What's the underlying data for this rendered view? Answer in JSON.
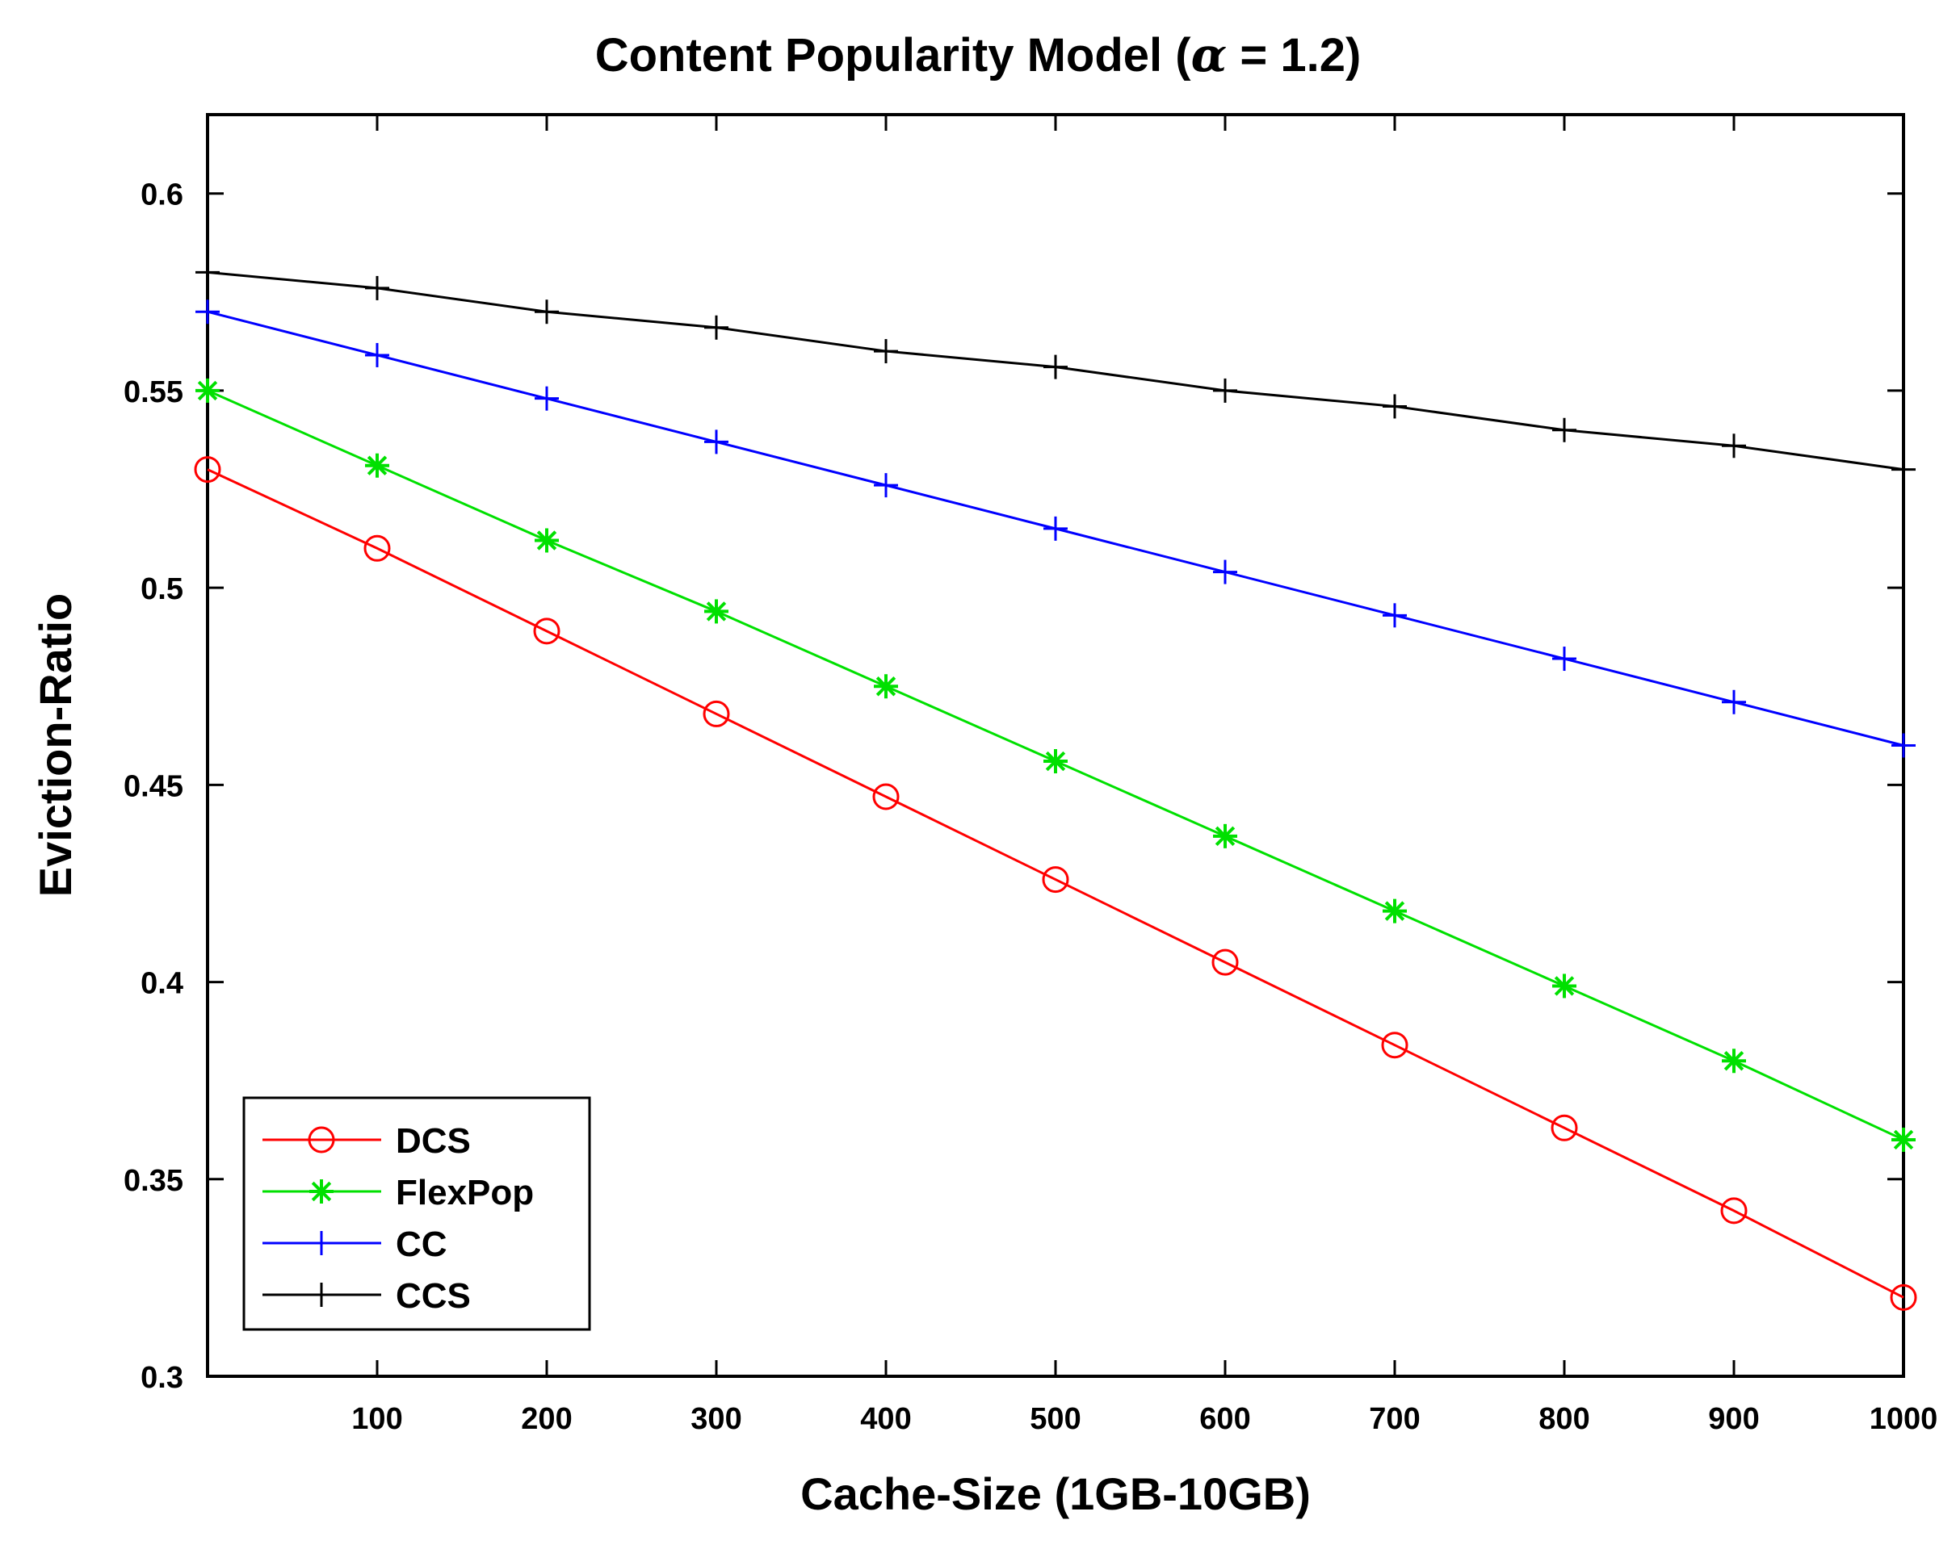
{
  "chart_data": {
    "type": "line",
    "title_prefix": "Content Popularity Model (",
    "title_symbol": "α",
    "title_suffix": " = 1.2)",
    "xlabel": "Cache-Size (1GB-10GB)",
    "ylabel": "Eviction-Ratio",
    "xlim": [
      0,
      1000
    ],
    "ylim": [
      0.3,
      0.62
    ],
    "xticks": [
      100,
      200,
      300,
      400,
      500,
      600,
      700,
      800,
      900,
      1000
    ],
    "yticks": [
      0.3,
      0.35,
      0.4,
      0.45,
      0.5,
      0.55,
      0.6
    ],
    "ytick_labels": [
      "0.3",
      "0.35",
      "0.4",
      "0.45",
      "0.5",
      "0.55",
      "0.6"
    ],
    "x": [
      0,
      100,
      200,
      300,
      400,
      500,
      600,
      700,
      800,
      900,
      1000
    ],
    "legend_position": "bottom-left",
    "series": [
      {
        "name": "DCS",
        "color": "#ff0000",
        "marker": "circle",
        "values": [
          0.53,
          0.51,
          0.489,
          0.468,
          0.447,
          0.426,
          0.405,
          0.384,
          0.363,
          0.342,
          0.32
        ]
      },
      {
        "name": "FlexPop",
        "color": "#00e000",
        "marker": "asterisk",
        "values": [
          0.55,
          0.531,
          0.512,
          0.494,
          0.475,
          0.456,
          0.437,
          0.418,
          0.399,
          0.38,
          0.36
        ]
      },
      {
        "name": "CC",
        "color": "#0000ff",
        "marker": "plus",
        "values": [
          0.57,
          0.559,
          0.548,
          0.537,
          0.526,
          0.515,
          0.504,
          0.493,
          0.482,
          0.471,
          0.46
        ]
      },
      {
        "name": "CCS",
        "color": "#000000",
        "marker": "plus",
        "values": [
          0.58,
          0.576,
          0.57,
          0.566,
          0.56,
          0.556,
          0.55,
          0.546,
          0.54,
          0.536,
          0.53
        ]
      }
    ]
  }
}
